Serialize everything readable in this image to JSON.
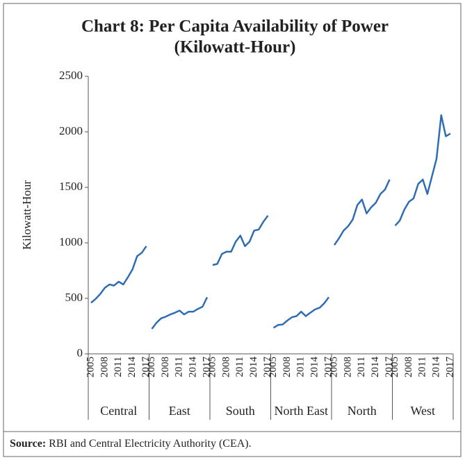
{
  "chart_data": {
    "type": "line",
    "title": "Chart 8: Per Capita Availability of Power",
    "subtitle": "(Kilowatt-Hour)",
    "y_label": "Kilowatt-Hour",
    "categories": [
      "2005",
      null,
      null,
      "2008",
      null,
      null,
      "2011",
      null,
      null,
      "2014",
      null,
      null,
      "2017"
    ],
    "series": [
      {
        "name": "Central",
        "color": "#2f6db3",
        "values": [
          460,
          495,
          540,
          595,
          625,
          615,
          650,
          625,
          690,
          760,
          880,
          910,
          970
        ]
      },
      {
        "name": "East",
        "color": "#2f6db3",
        "values": [
          225,
          280,
          320,
          335,
          355,
          370,
          390,
          355,
          380,
          380,
          405,
          425,
          510
        ]
      },
      {
        "name": "South",
        "color": "#2f6db3",
        "values": [
          800,
          810,
          900,
          920,
          920,
          1010,
          1065,
          970,
          1010,
          1110,
          1120,
          1190,
          1245
        ]
      },
      {
        "name": "North East",
        "color": "#2f6db3",
        "values": [
          235,
          260,
          265,
          300,
          330,
          340,
          380,
          340,
          370,
          400,
          415,
          455,
          510
        ]
      },
      {
        "name": "North",
        "color": "#2f6db3",
        "values": [
          980,
          1040,
          1110,
          1150,
          1210,
          1340,
          1390,
          1265,
          1320,
          1360,
          1440,
          1480,
          1570
        ]
      },
      {
        "name": "West",
        "color": "#2f6db3",
        "values": [
          1155,
          1200,
          1300,
          1370,
          1400,
          1530,
          1570,
          1440,
          1600,
          1760,
          2150,
          1960,
          1985
        ]
      }
    ],
    "ylim": [
      0,
      2500
    ],
    "yticks": [
      0,
      500,
      1000,
      1500,
      2000,
      2500
    ],
    "source_label": "Source:",
    "source": "RBI and Central Electricity Authority (CEA)."
  }
}
